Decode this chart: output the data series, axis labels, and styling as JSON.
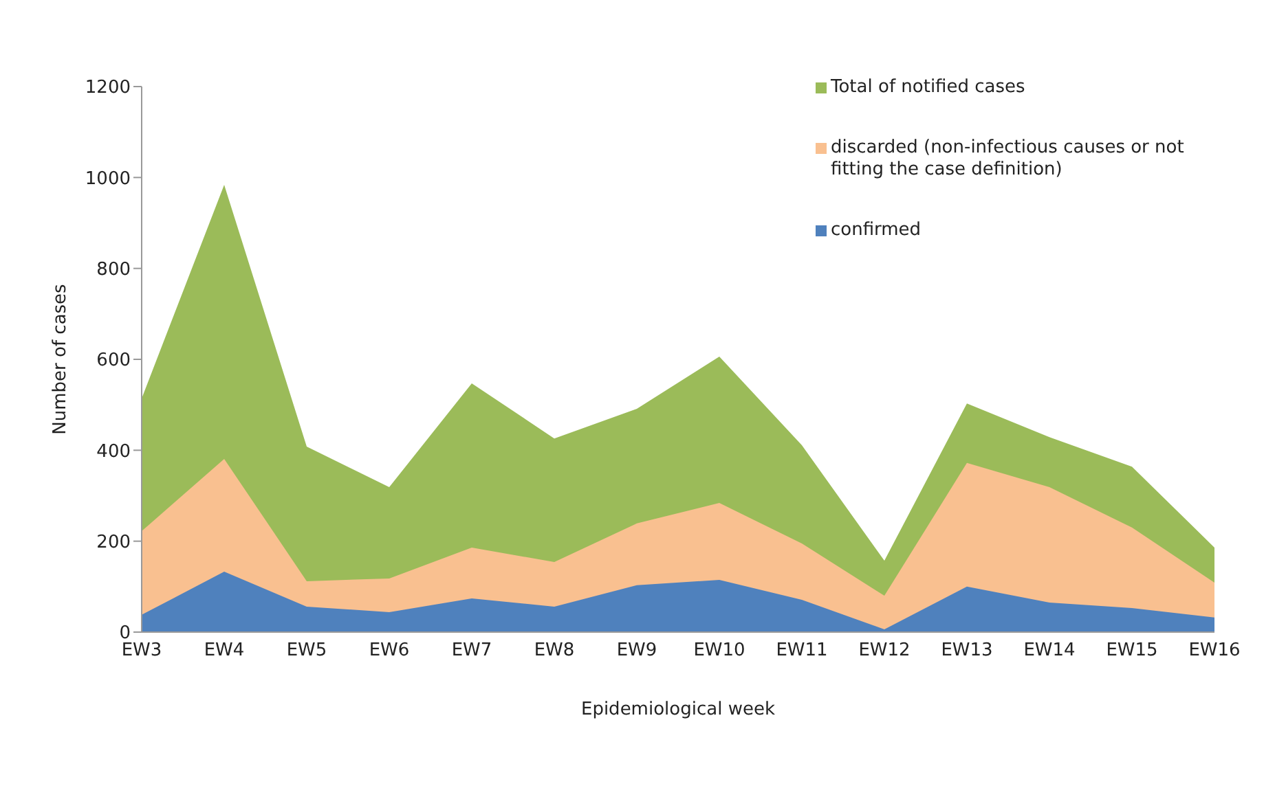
{
  "chart_data": {
    "type": "area",
    "xlabel": "Epidemiological week",
    "ylabel": "Number of cases",
    "categories": [
      "EW3",
      "EW4",
      "EW5",
      "EW6",
      "EW7",
      "EW8",
      "EW9",
      "EW10",
      "EW11",
      "EW12",
      "EW13",
      "EW14",
      "EW15",
      "EW16"
    ],
    "series": [
      {
        "name": "Total of notified cases",
        "color": "#9bbb59",
        "values": [
          514,
          984,
          408,
          319,
          547,
          426,
          491,
          606,
          411,
          157,
          503,
          429,
          364,
          186
        ]
      },
      {
        "name": "discarded (non-infectious causes or not fitting the case definition)",
        "color": "#f9c090",
        "values": [
          222,
          381,
          112,
          118,
          186,
          154,
          239,
          284,
          195,
          80,
          372,
          319,
          230,
          109
        ]
      },
      {
        "name": "confirmed",
        "color": "#4f81bd",
        "values": [
          38,
          133,
          56,
          44,
          74,
          56,
          103,
          115,
          71,
          6,
          100,
          65,
          53,
          32
        ]
      }
    ],
    "ylim": [
      0,
      1200
    ],
    "yticks": [
      0,
      200,
      400,
      600,
      800,
      1000,
      1200
    ],
    "grid": false,
    "legend": "top right"
  }
}
